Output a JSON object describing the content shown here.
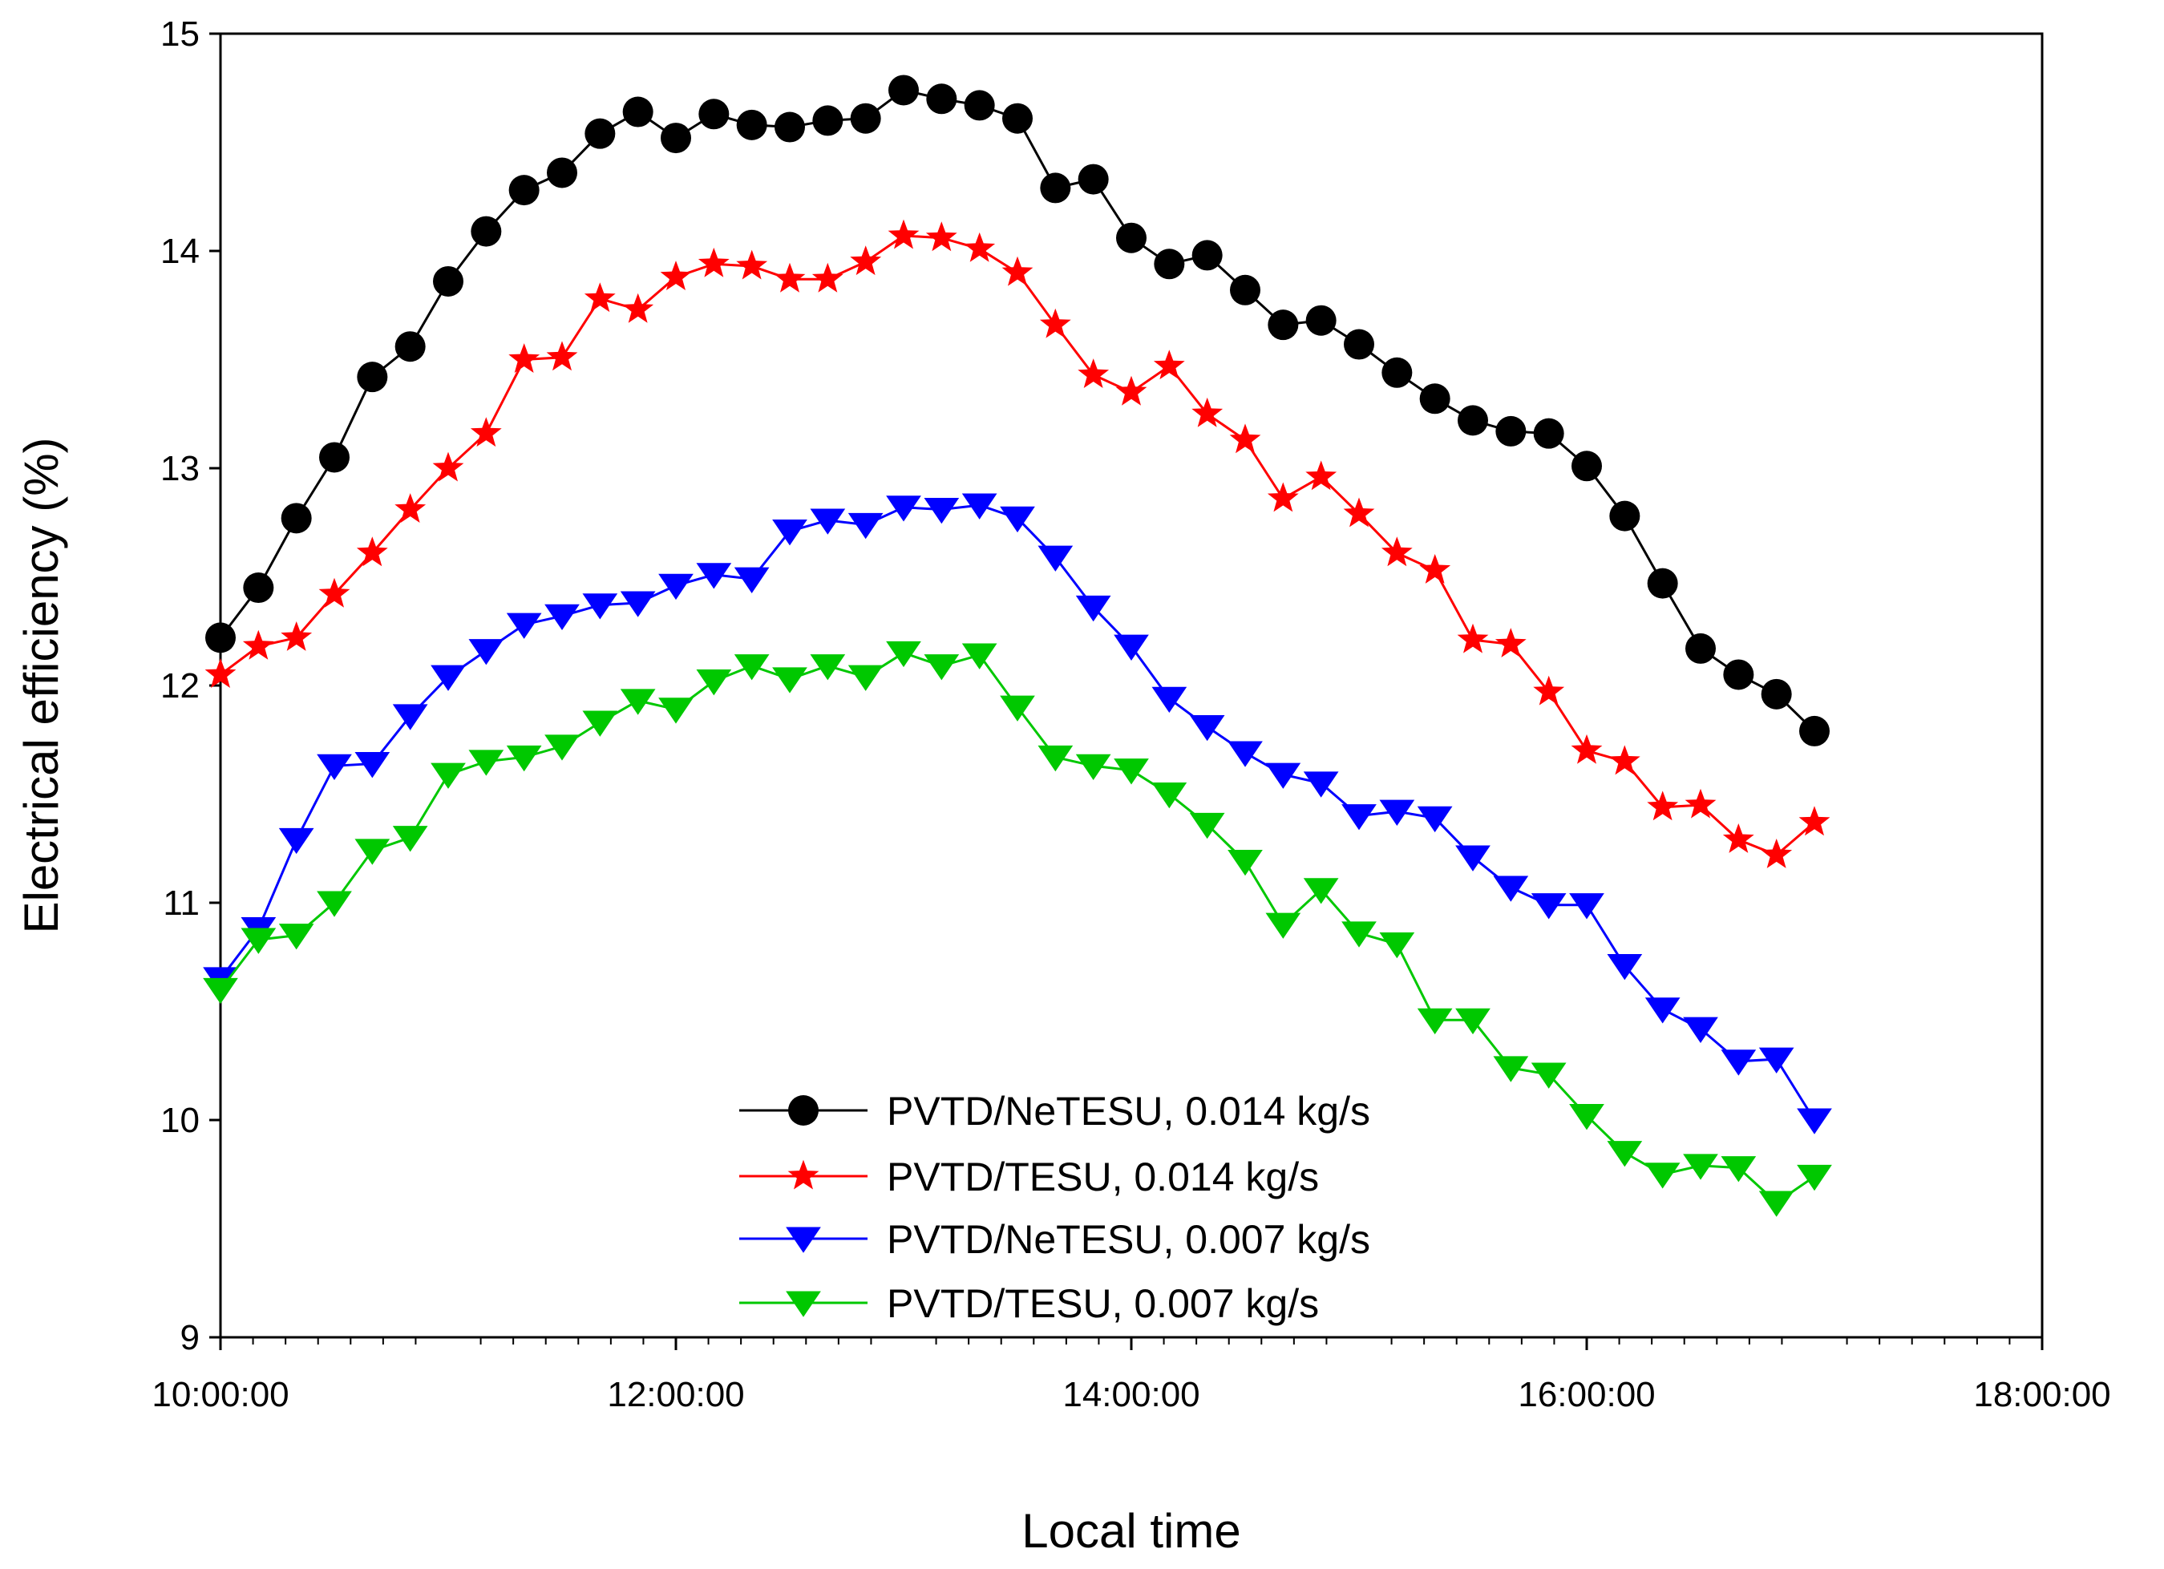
{
  "chart_data": {
    "type": "line",
    "title": "",
    "xlabel": "Local time",
    "ylabel": "Electrical efficiency (%)",
    "xlim": [
      10,
      18
    ],
    "ylim": [
      9,
      15
    ],
    "x_ticks": [
      "10:00:00",
      "12:00:00",
      "14:00:00",
      "16:00:00",
      "18:00:00"
    ],
    "y_ticks": [
      "9",
      "10",
      "11",
      "12",
      "13",
      "14",
      "15"
    ],
    "legend_position": "bottom-center",
    "x": [
      10.0,
      10.1667,
      10.3333,
      10.5,
      10.6667,
      10.8333,
      11.0,
      11.1667,
      11.3333,
      11.5,
      11.6667,
      11.8333,
      12.0,
      12.1667,
      12.3333,
      12.5,
      12.6667,
      12.8333,
      13.0,
      13.1667,
      13.3333,
      13.5,
      13.6667,
      13.8333,
      14.0,
      14.1667,
      14.3333,
      14.5,
      14.6667,
      14.8333,
      15.0,
      15.1667,
      15.3333,
      15.5,
      15.6667,
      15.8333,
      16.0,
      16.1667,
      16.3333,
      16.5,
      16.6667,
      16.8333,
      17.0
    ],
    "series": [
      {
        "name": "PVTD/NeTESU, 0.014 kg/s",
        "color": "#000000",
        "marker": "circle",
        "values": [
          12.22,
          12.45,
          12.77,
          13.05,
          13.42,
          13.56,
          13.86,
          14.09,
          14.28,
          14.36,
          14.54,
          14.64,
          14.52,
          14.63,
          14.58,
          14.57,
          14.6,
          14.61,
          14.74,
          14.7,
          14.67,
          14.61,
          14.29,
          14.33,
          14.06,
          13.94,
          13.98,
          13.82,
          13.66,
          13.68,
          13.57,
          13.44,
          13.32,
          13.22,
          13.17,
          13.16,
          13.01,
          12.78,
          12.47,
          12.17,
          12.05,
          11.96,
          11.79
        ]
      },
      {
        "name": "PVTD/TESU, 0.014 kg/s",
        "color": "#ff0000",
        "marker": "star",
        "values": [
          12.05,
          12.18,
          12.22,
          12.42,
          12.61,
          12.81,
          13.0,
          13.16,
          13.5,
          13.51,
          13.78,
          13.73,
          13.88,
          13.94,
          13.93,
          13.87,
          13.87,
          13.95,
          14.07,
          14.06,
          14.01,
          13.9,
          13.66,
          13.43,
          13.35,
          13.47,
          13.25,
          13.13,
          12.86,
          12.96,
          12.79,
          12.61,
          12.53,
          12.21,
          12.19,
          11.97,
          11.7,
          11.65,
          11.44,
          11.45,
          11.29,
          11.22,
          11.37
        ]
      },
      {
        "name": "PVTD/NeTESU, 0.007 kg/s",
        "color": "#0000ff",
        "marker": "triangle-down",
        "values": [
          10.65,
          10.88,
          11.29,
          11.63,
          11.64,
          11.86,
          12.04,
          12.16,
          12.28,
          12.32,
          12.37,
          12.38,
          12.46,
          12.51,
          12.49,
          12.71,
          12.76,
          12.74,
          12.82,
          12.81,
          12.83,
          12.77,
          12.59,
          12.36,
          12.18,
          11.94,
          11.81,
          11.69,
          11.59,
          11.55,
          11.4,
          11.42,
          11.39,
          11.21,
          11.07,
          10.99,
          10.99,
          10.71,
          10.51,
          10.42,
          10.27,
          10.28,
          10.0
        ]
      },
      {
        "name": "PVTD/TESU, 0.007 kg/s",
        "color": "#00c800",
        "marker": "triangle-down",
        "values": [
          10.6,
          10.83,
          10.85,
          11.0,
          11.24,
          11.3,
          11.59,
          11.65,
          11.67,
          11.72,
          11.83,
          11.93,
          11.89,
          12.02,
          12.09,
          12.03,
          12.09,
          12.04,
          12.15,
          12.09,
          12.14,
          11.9,
          11.67,
          11.63,
          11.61,
          11.5,
          11.36,
          11.19,
          10.9,
          11.06,
          10.86,
          10.81,
          10.46,
          10.46,
          10.24,
          10.21,
          10.02,
          9.85,
          9.75,
          9.79,
          9.78,
          9.62,
          9.74
        ]
      }
    ]
  }
}
